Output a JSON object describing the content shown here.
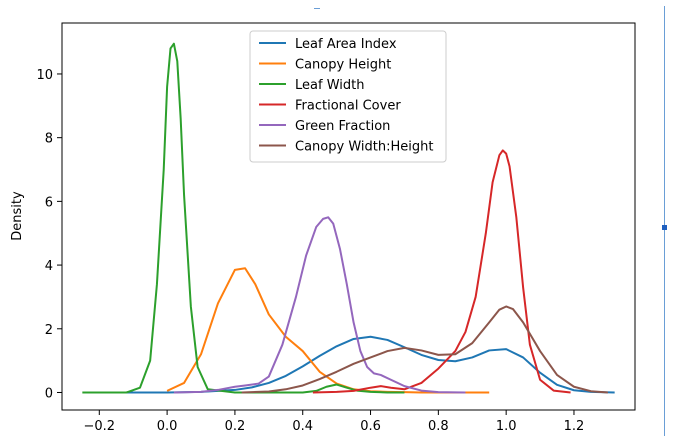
{
  "chart_data": {
    "type": "line",
    "title": "",
    "xlabel": "",
    "ylabel": "Density",
    "xlim": [
      -0.31,
      1.38
    ],
    "ylim": [
      -0.55,
      11.6
    ],
    "xticks": [
      -0.2,
      0.0,
      0.2,
      0.4,
      0.6,
      0.8,
      1.0,
      1.2
    ],
    "xtick_labels": [
      "−0.2",
      "0.0",
      "0.2",
      "0.4",
      "0.6",
      "0.8",
      "1.0",
      "1.2"
    ],
    "yticks": [
      0,
      2,
      4,
      6,
      8,
      10
    ],
    "ytick_labels": [
      "0",
      "2",
      "4",
      "6",
      "8",
      "10"
    ],
    "grid": false,
    "legend_position": "top-center",
    "series": [
      {
        "name": "Leaf Area Index",
        "color": "#1f77b4",
        "x": [
          -0.22,
          0.0,
          0.1,
          0.2,
          0.25,
          0.3,
          0.35,
          0.4,
          0.45,
          0.5,
          0.55,
          0.6,
          0.65,
          0.7,
          0.75,
          0.8,
          0.85,
          0.9,
          0.95,
          1.0,
          1.05,
          1.1,
          1.15,
          1.2,
          1.25,
          1.32
        ],
        "y": [
          0.0,
          0.0,
          0.02,
          0.08,
          0.16,
          0.3,
          0.52,
          0.82,
          1.15,
          1.45,
          1.68,
          1.75,
          1.65,
          1.42,
          1.18,
          1.02,
          0.98,
          1.1,
          1.32,
          1.36,
          1.1,
          0.62,
          0.24,
          0.07,
          0.02,
          0.0
        ]
      },
      {
        "name": "Canopy Height",
        "color": "#ff7f0e",
        "x": [
          0.0,
          0.05,
          0.1,
          0.15,
          0.2,
          0.23,
          0.26,
          0.3,
          0.35,
          0.4,
          0.45,
          0.5,
          0.55,
          0.6,
          0.65,
          0.7,
          0.75,
          0.8,
          0.95
        ],
        "y": [
          0.05,
          0.3,
          1.2,
          2.8,
          3.85,
          3.9,
          3.4,
          2.45,
          1.75,
          1.3,
          0.65,
          0.28,
          0.1,
          0.04,
          0.02,
          0.01,
          0.0,
          0.0,
          0.0
        ]
      },
      {
        "name": "Leaf Width",
        "color": "#2ca02c",
        "x": [
          -0.25,
          -0.12,
          -0.08,
          -0.05,
          -0.03,
          -0.01,
          0.0,
          0.01,
          0.02,
          0.03,
          0.04,
          0.05,
          0.07,
          0.09,
          0.12,
          0.2,
          0.4,
          0.44,
          0.47,
          0.5,
          0.53,
          0.56,
          0.6,
          0.65,
          0.7
        ],
        "y": [
          0.0,
          0.0,
          0.15,
          1.0,
          3.4,
          7.0,
          9.6,
          10.8,
          10.95,
          10.4,
          8.6,
          6.2,
          2.7,
          0.8,
          0.1,
          0.0,
          0.0,
          0.05,
          0.18,
          0.25,
          0.15,
          0.06,
          0.02,
          0.0,
          0.0
        ]
      },
      {
        "name": "Fractional Cover",
        "color": "#d62728",
        "x": [
          0.43,
          0.5,
          0.55,
          0.6,
          0.63,
          0.66,
          0.7,
          0.75,
          0.8,
          0.85,
          0.88,
          0.91,
          0.94,
          0.96,
          0.98,
          0.99,
          1.0,
          1.01,
          1.03,
          1.05,
          1.07,
          1.1,
          1.14,
          1.19
        ],
        "y": [
          0.0,
          0.02,
          0.05,
          0.15,
          0.2,
          0.15,
          0.1,
          0.3,
          0.75,
          1.3,
          1.9,
          3.0,
          5.0,
          6.6,
          7.45,
          7.6,
          7.5,
          7.1,
          5.5,
          3.3,
          1.5,
          0.4,
          0.06,
          0.0
        ]
      },
      {
        "name": "Green Fraction",
        "color": "#9467bd",
        "x": [
          0.02,
          0.1,
          0.15,
          0.2,
          0.23,
          0.27,
          0.3,
          0.34,
          0.38,
          0.41,
          0.44,
          0.46,
          0.475,
          0.49,
          0.51,
          0.53,
          0.55,
          0.57,
          0.59,
          0.61,
          0.63,
          0.66,
          0.7,
          0.75,
          0.8,
          0.88
        ],
        "y": [
          0.0,
          0.02,
          0.08,
          0.18,
          0.22,
          0.28,
          0.5,
          1.5,
          3.0,
          4.3,
          5.2,
          5.45,
          5.5,
          5.3,
          4.5,
          3.4,
          2.2,
          1.3,
          0.8,
          0.6,
          0.55,
          0.4,
          0.2,
          0.06,
          0.01,
          0.0
        ]
      },
      {
        "name": "Canopy Width:Height",
        "color": "#8c564b",
        "x": [
          0.22,
          0.3,
          0.35,
          0.4,
          0.45,
          0.5,
          0.55,
          0.6,
          0.65,
          0.7,
          0.75,
          0.8,
          0.85,
          0.9,
          0.95,
          0.98,
          1.0,
          1.02,
          1.05,
          1.1,
          1.15,
          1.2,
          1.25,
          1.3
        ],
        "y": [
          0.0,
          0.03,
          0.1,
          0.22,
          0.42,
          0.65,
          0.9,
          1.1,
          1.3,
          1.4,
          1.32,
          1.18,
          1.2,
          1.55,
          2.2,
          2.6,
          2.7,
          2.62,
          2.2,
          1.3,
          0.55,
          0.18,
          0.04,
          0.0
        ]
      }
    ]
  }
}
